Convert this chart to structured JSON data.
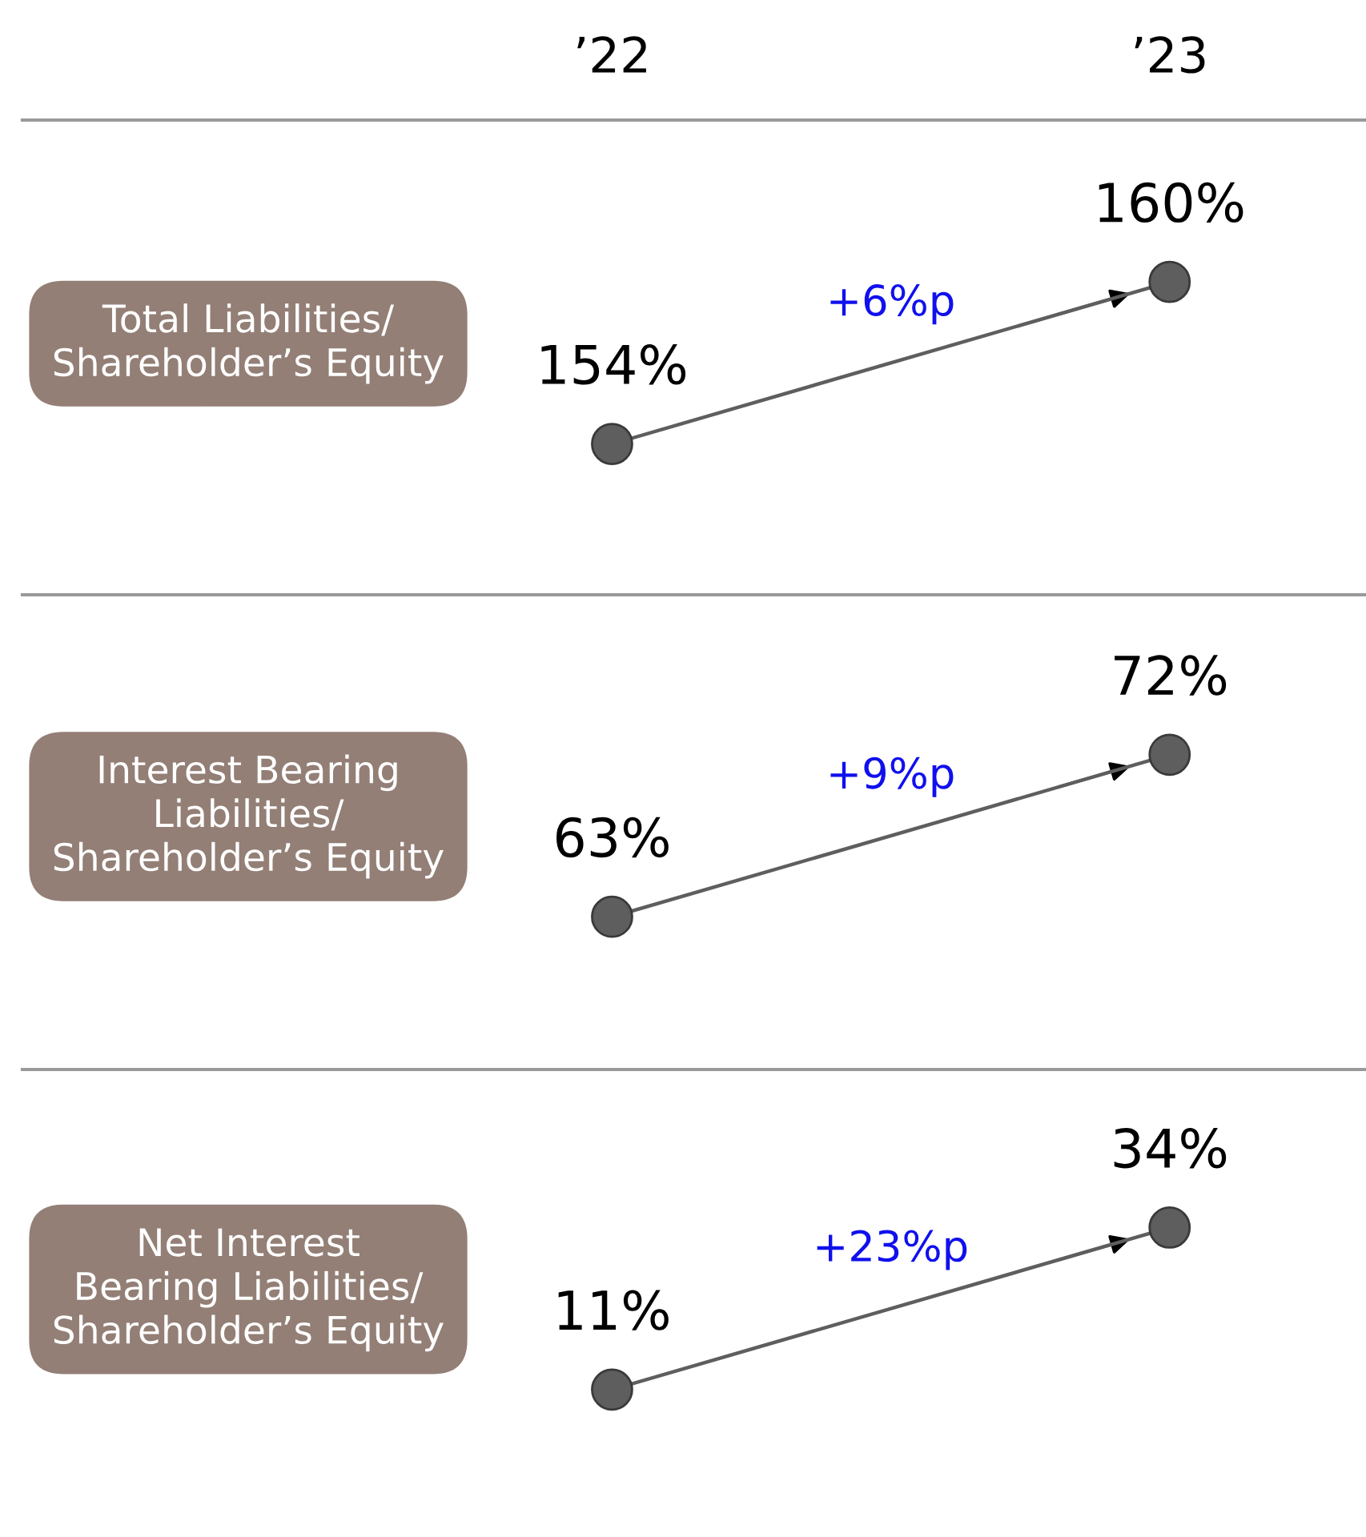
{
  "chart_data": [
    {
      "type": "line",
      "title": "Total Liabilities/\nShareholder’s Equity",
      "categories": [
        "’22",
        "’23"
      ],
      "series": [
        {
          "color": "#5e5e5e",
          "values": [
            154,
            160
          ],
          "value_labels": [
            "154%",
            "160%"
          ]
        }
      ],
      "marker": "circle",
      "annotations": [
        "+6%p"
      ]
    },
    {
      "type": "line",
      "title": "Interest Bearing\nLiabilities/\nShareholder’s Equity",
      "categories": [
        null,
        null
      ],
      "series": [
        {
          "color": "#5e5e5e",
          "values": [
            63,
            72
          ],
          "value_labels": [
            "63%",
            "72%"
          ]
        }
      ],
      "marker": "circle",
      "annotations": [
        "+9%p"
      ]
    },
    {
      "type": "line",
      "title": "Net Interest\nBearing Liabilities/\nShareholder’s Equity",
      "categories": [
        null,
        null
      ],
      "series": [
        {
          "color": "#5e5e5e",
          "values": [
            11,
            34
          ],
          "value_labels": [
            "11%",
            "34%"
          ]
        }
      ],
      "marker": "circle",
      "annotations": [
        "+23%p"
      ]
    }
  ]
}
